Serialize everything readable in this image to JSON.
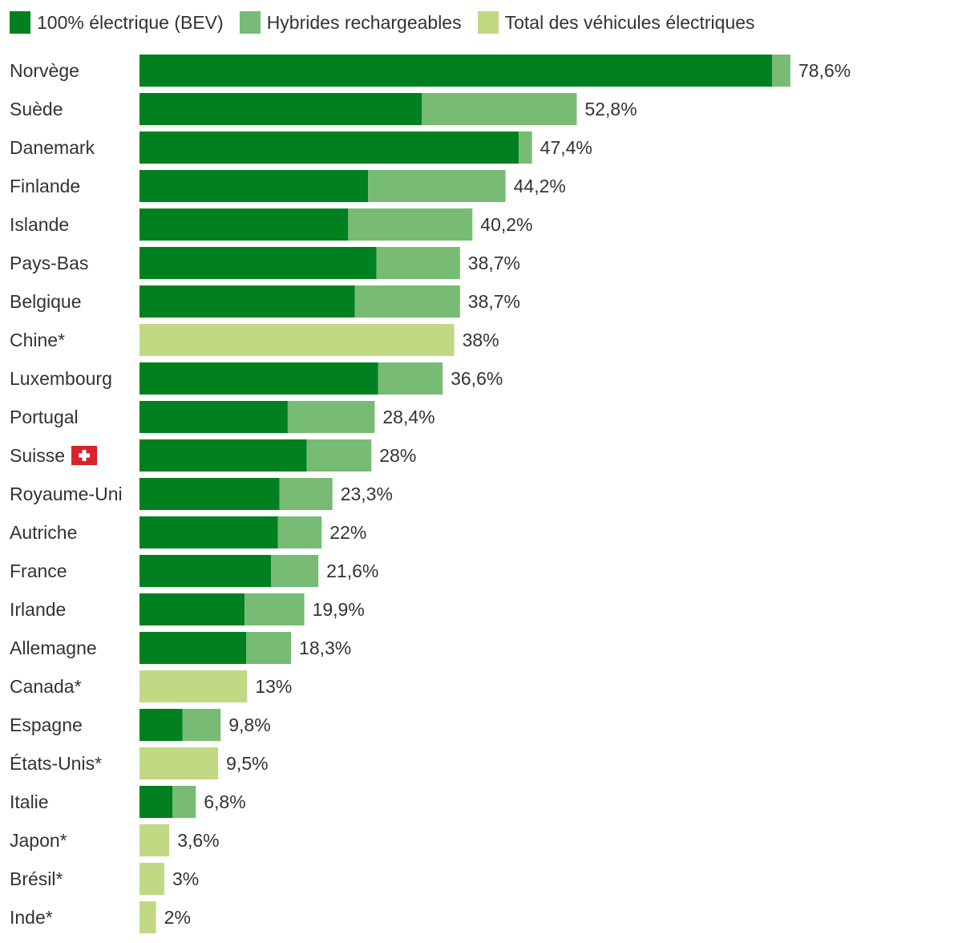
{
  "colors": {
    "bev": "#00801f",
    "phev": "#77bb75",
    "total": "#c2d984",
    "text": "#333333",
    "swiss_red": "#d8232a"
  },
  "legend": [
    {
      "key": "bev",
      "label": "100% électrique (BEV)"
    },
    {
      "key": "phev",
      "label": "Hybrides rechargeables"
    },
    {
      "key": "total",
      "label": "Total des véhicules électriques"
    }
  ],
  "chart_data": {
    "type": "bar",
    "orientation": "horizontal",
    "stacked": true,
    "unit": "%",
    "xlim": [
      0,
      80
    ],
    "grid": false,
    "legend_position": "top-left",
    "categories": [
      "Norvège",
      "Suède",
      "Danemark",
      "Finlande",
      "Islande",
      "Pays-Bas",
      "Belgique",
      "Chine*",
      "Luxembourg",
      "Portugal",
      "Suisse",
      "Royaume-Uni",
      "Autriche",
      "France",
      "Irlande",
      "Allemagne",
      "Canada*",
      "Espagne",
      "États-Unis*",
      "Italie",
      "Japon*",
      "Brésil*",
      "Inde*"
    ],
    "series": [
      {
        "name": "100% électrique (BEV)",
        "key": "bev",
        "values": [
          76.4,
          34.1,
          45.8,
          27.6,
          25.2,
          28.6,
          26.0,
          null,
          28.8,
          17.9,
          20.2,
          16.9,
          16.7,
          15.9,
          12.7,
          12.9,
          null,
          5.2,
          null,
          4.0,
          null,
          null,
          null
        ]
      },
      {
        "name": "Hybrides rechargeables",
        "key": "phev",
        "values": [
          2.2,
          18.7,
          1.6,
          16.6,
          15.0,
          10.1,
          12.7,
          null,
          7.8,
          10.5,
          7.8,
          6.4,
          5.3,
          5.7,
          7.2,
          5.4,
          null,
          4.6,
          null,
          2.8,
          null,
          null,
          null
        ]
      },
      {
        "name": "Total des véhicules électriques",
        "key": "total",
        "values": [
          null,
          null,
          null,
          null,
          null,
          null,
          null,
          38,
          null,
          null,
          null,
          null,
          null,
          null,
          null,
          null,
          13,
          null,
          9.5,
          null,
          3.6,
          3,
          2
        ]
      }
    ],
    "totals": [
      78.6,
      52.8,
      47.4,
      44.2,
      40.2,
      38.7,
      38.7,
      38,
      36.6,
      28.4,
      28,
      23.3,
      22,
      21.6,
      19.9,
      18.3,
      13,
      9.8,
      9.5,
      6.8,
      3.6,
      3,
      2
    ],
    "value_labels": [
      "78,6%",
      "52,8%",
      "47,4%",
      "44,2%",
      "40,2%",
      "38,7%",
      "38,7%",
      "38%",
      "36,6%",
      "28,4%",
      "28%",
      "23,3%",
      "22%",
      "21,6%",
      "19,9%",
      "18,3%",
      "13%",
      "9,8%",
      "9,5%",
      "6,8%",
      "3,6%",
      "3%",
      "2%"
    ],
    "flag_icons": [
      "",
      "",
      "",
      "",
      "",
      "",
      "",
      "",
      "",
      "",
      "swiss-flag-icon",
      "",
      "",
      "",
      "",
      "",
      "",
      "",
      "",
      "",
      "",
      "",
      ""
    ]
  }
}
